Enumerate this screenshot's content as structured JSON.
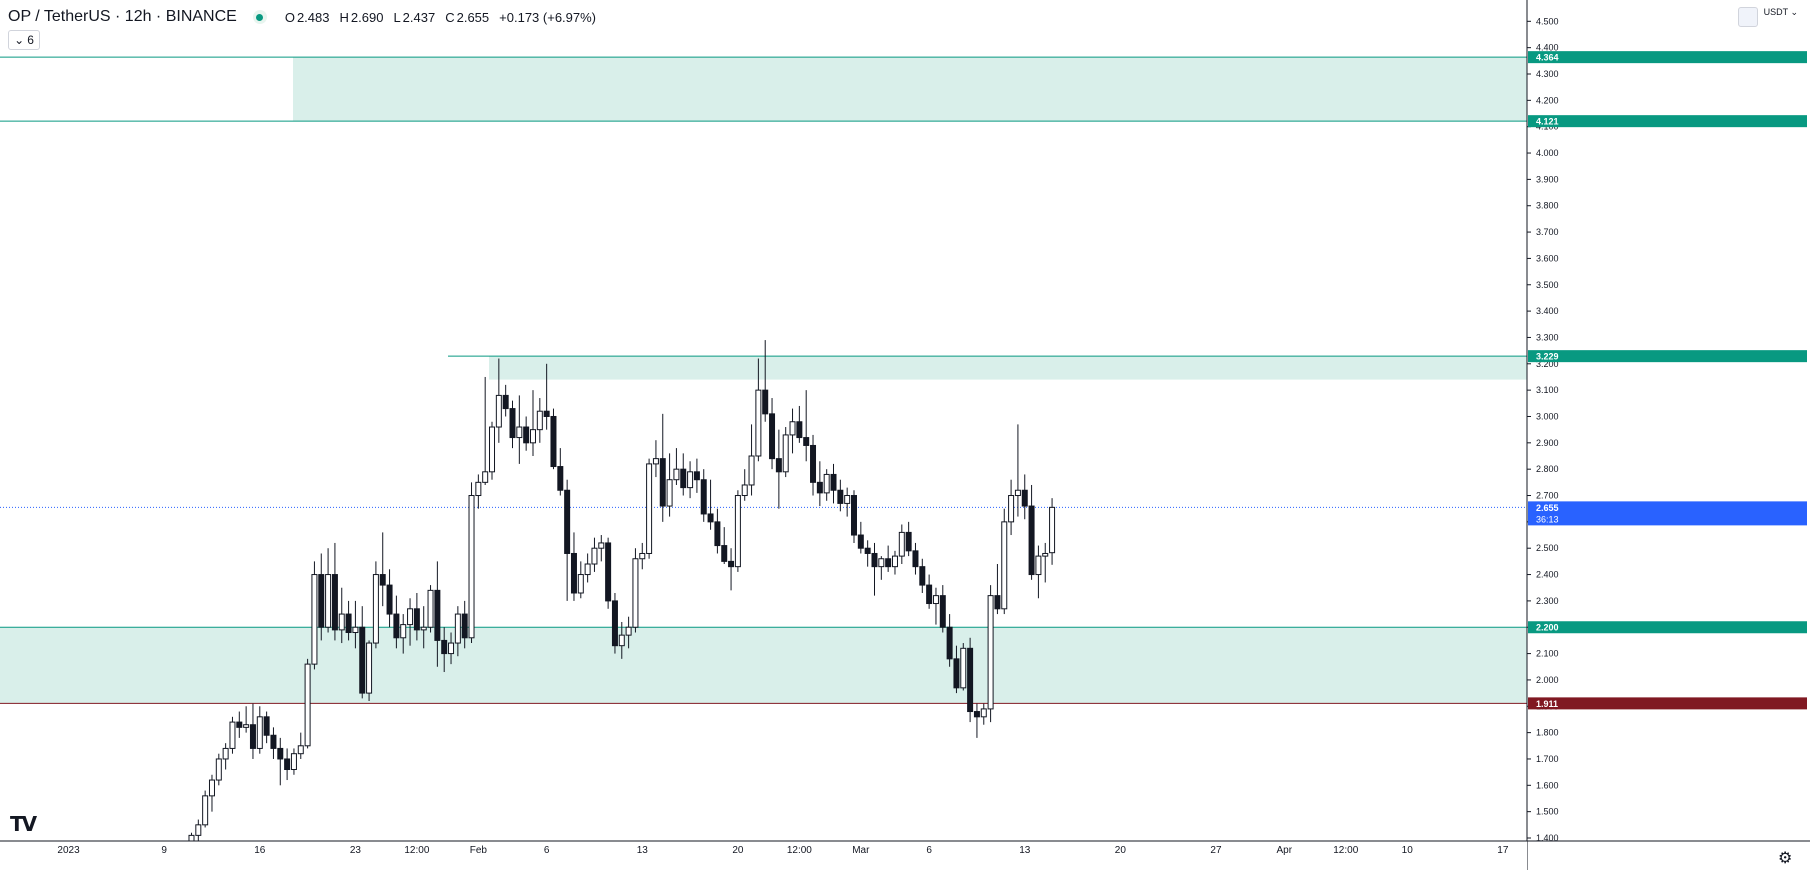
{
  "header": {
    "symbol": "OP / TetherUS · 12h · BINANCE",
    "open_label": "O",
    "open": "2.483",
    "high_label": "H",
    "high": "2.690",
    "low_label": "L",
    "low": "2.437",
    "close_label": "C",
    "close": "2.655",
    "change": "+0.173 (+6.97%)",
    "status_color": "#089981"
  },
  "indicator_toggle": {
    "icon": "chevron-down-icon",
    "count": "6"
  },
  "price_axis": {
    "currency": "USDT"
  },
  "logo_text": "TV",
  "colors": {
    "zone_fill": "#d9efea",
    "zone_line": "#089981",
    "support_red": "#801922",
    "current_price": "#2962ff",
    "grid": "#f0f3fa",
    "candle_body_down": "#131722"
  },
  "chart_data": {
    "type": "candlestick",
    "title": "OP / TetherUS · 12h · BINANCE",
    "ylim": [
      1.4,
      4.5
    ],
    "y_ticks": [
      1.4,
      1.5,
      1.6,
      1.7,
      1.8,
      1.9,
      2.0,
      2.1,
      2.2,
      2.3,
      2.4,
      2.5,
      2.6,
      2.7,
      2.8,
      2.9,
      3.0,
      3.1,
      3.2,
      3.3,
      3.4,
      3.5,
      3.6,
      3.7,
      3.8,
      3.9,
      4.0,
      4.1,
      4.2,
      4.3,
      4.4,
      4.5
    ],
    "x_labels": [
      {
        "label": "2023",
        "slot": -15
      },
      {
        "label": "9",
        "slot": -1
      },
      {
        "label": "16",
        "slot": 13
      },
      {
        "label": "23",
        "slot": 27
      },
      {
        "label": "12:00",
        "slot": 36
      },
      {
        "label": "Feb",
        "slot": 45
      },
      {
        "label": "6",
        "slot": 55
      },
      {
        "label": "13",
        "slot": 69
      },
      {
        "label": "20",
        "slot": 83
      },
      {
        "label": "12:00",
        "slot": 92
      },
      {
        "label": "Mar",
        "slot": 101
      },
      {
        "label": "6",
        "slot": 111
      },
      {
        "label": "13",
        "slot": 125
      },
      {
        "label": "20",
        "slot": 139
      },
      {
        "label": "27",
        "slot": 153
      },
      {
        "label": "Apr",
        "slot": 163
      },
      {
        "label": "12:00",
        "slot": 172
      },
      {
        "label": "10",
        "slot": 181
      },
      {
        "label": "17",
        "slot": 195
      }
    ],
    "zones": [
      {
        "top": 4.364,
        "bottom": 4.121,
        "label_top": "4.364",
        "label_bottom": "4.121"
      },
      {
        "top": 3.229,
        "bottom": 3.14,
        "label_top": "3.229"
      },
      {
        "top": 2.2,
        "bottom": 1.911,
        "label_top": "2.200",
        "label_bottom": "1.911"
      }
    ],
    "current_price": {
      "value": 2.655,
      "label": "2.655",
      "countdown": "36:13"
    },
    "candles": [
      [
        1.3,
        1.32,
        1.29,
        1.31
      ],
      [
        1.31,
        1.35,
        1.3,
        1.34
      ],
      [
        1.34,
        1.37,
        1.33,
        1.36
      ],
      [
        1.36,
        1.42,
        1.35,
        1.41
      ],
      [
        1.41,
        1.47,
        1.39,
        1.45
      ],
      [
        1.45,
        1.58,
        1.44,
        1.56
      ],
      [
        1.56,
        1.64,
        1.5,
        1.62
      ],
      [
        1.62,
        1.72,
        1.6,
        1.7
      ],
      [
        1.7,
        1.76,
        1.66,
        1.74
      ],
      [
        1.74,
        1.86,
        1.72,
        1.84
      ],
      [
        1.84,
        1.88,
        1.78,
        1.82
      ],
      [
        1.82,
        1.9,
        1.8,
        1.83
      ],
      [
        1.83,
        1.91,
        1.7,
        1.74
      ],
      [
        1.74,
        1.9,
        1.72,
        1.86
      ],
      [
        1.86,
        1.88,
        1.76,
        1.79
      ],
      [
        1.79,
        1.82,
        1.7,
        1.74
      ],
      [
        1.74,
        1.78,
        1.6,
        1.7
      ],
      [
        1.7,
        1.74,
        1.62,
        1.66
      ],
      [
        1.66,
        1.74,
        1.64,
        1.72
      ],
      [
        1.72,
        1.8,
        1.7,
        1.75
      ],
      [
        1.75,
        2.08,
        1.74,
        2.06
      ],
      [
        2.06,
        2.45,
        2.04,
        2.4
      ],
      [
        2.4,
        2.48,
        2.15,
        2.2
      ],
      [
        2.2,
        2.5,
        2.18,
        2.4
      ],
      [
        2.4,
        2.52,
        2.15,
        2.19
      ],
      [
        2.19,
        2.35,
        2.14,
        2.25
      ],
      [
        2.25,
        2.3,
        2.15,
        2.18
      ],
      [
        2.18,
        2.3,
        2.12,
        2.2
      ],
      [
        2.2,
        2.28,
        1.93,
        1.95
      ],
      [
        1.95,
        2.15,
        1.92,
        2.14
      ],
      [
        2.14,
        2.45,
        2.12,
        2.4
      ],
      [
        2.4,
        2.56,
        2.28,
        2.36
      ],
      [
        2.36,
        2.42,
        2.2,
        2.25
      ],
      [
        2.25,
        2.32,
        2.12,
        2.16
      ],
      [
        2.16,
        2.25,
        2.1,
        2.21
      ],
      [
        2.21,
        2.31,
        2.13,
        2.27
      ],
      [
        2.27,
        2.33,
        2.15,
        2.19
      ],
      [
        2.19,
        2.28,
        2.12,
        2.2
      ],
      [
        2.2,
        2.36,
        2.18,
        2.34
      ],
      [
        2.34,
        2.45,
        2.05,
        2.15
      ],
      [
        2.15,
        2.2,
        2.03,
        2.1
      ],
      [
        2.1,
        2.18,
        2.06,
        2.14
      ],
      [
        2.14,
        2.28,
        2.09,
        2.25
      ],
      [
        2.25,
        2.3,
        2.12,
        2.16
      ],
      [
        2.16,
        2.75,
        2.14,
        2.7
      ],
      [
        2.7,
        2.78,
        2.65,
        2.75
      ],
      [
        2.75,
        3.15,
        2.74,
        2.79
      ],
      [
        2.79,
        2.98,
        2.76,
        2.96
      ],
      [
        2.96,
        3.22,
        2.9,
        3.08
      ],
      [
        3.08,
        3.12,
        3.0,
        3.03
      ],
      [
        3.03,
        3.06,
        2.88,
        2.92
      ],
      [
        2.92,
        3.08,
        2.82,
        2.96
      ],
      [
        2.96,
        3.0,
        2.87,
        2.9
      ],
      [
        2.9,
        3.1,
        2.85,
        2.95
      ],
      [
        2.95,
        3.07,
        2.9,
        3.02
      ],
      [
        3.02,
        3.2,
        2.95,
        3.0
      ],
      [
        3.0,
        3.03,
        2.8,
        2.81
      ],
      [
        2.81,
        2.88,
        2.7,
        2.72
      ],
      [
        2.72,
        2.76,
        2.3,
        2.48
      ],
      [
        2.48,
        2.56,
        2.3,
        2.33
      ],
      [
        2.33,
        2.45,
        2.31,
        2.4
      ],
      [
        2.4,
        2.48,
        2.37,
        2.44
      ],
      [
        2.44,
        2.54,
        2.41,
        2.5
      ],
      [
        2.5,
        2.55,
        2.45,
        2.52
      ],
      [
        2.52,
        2.54,
        2.27,
        2.3
      ],
      [
        2.3,
        2.33,
        2.1,
        2.13
      ],
      [
        2.13,
        2.22,
        2.08,
        2.17
      ],
      [
        2.17,
        2.24,
        2.12,
        2.2
      ],
      [
        2.2,
        2.5,
        2.18,
        2.46
      ],
      [
        2.46,
        2.52,
        2.42,
        2.48
      ],
      [
        2.48,
        2.84,
        2.46,
        2.82
      ],
      [
        2.82,
        2.91,
        2.77,
        2.84
      ],
      [
        2.84,
        3.01,
        2.6,
        2.66
      ],
      [
        2.66,
        2.86,
        2.62,
        2.76
      ],
      [
        2.76,
        2.88,
        2.74,
        2.8
      ],
      [
        2.8,
        2.86,
        2.7,
        2.73
      ],
      [
        2.73,
        2.83,
        2.69,
        2.79
      ],
      [
        2.79,
        2.84,
        2.71,
        2.76
      ],
      [
        2.76,
        2.8,
        2.6,
        2.63
      ],
      [
        2.63,
        2.76,
        2.57,
        2.6
      ],
      [
        2.6,
        2.65,
        2.48,
        2.51
      ],
      [
        2.51,
        2.58,
        2.44,
        2.45
      ],
      [
        2.45,
        2.5,
        2.34,
        2.43
      ],
      [
        2.43,
        2.72,
        2.41,
        2.7
      ],
      [
        2.7,
        2.8,
        2.68,
        2.74
      ],
      [
        2.74,
        2.97,
        2.7,
        2.85
      ],
      [
        2.85,
        3.22,
        2.83,
        3.1
      ],
      [
        3.1,
        3.29,
        2.98,
        3.01
      ],
      [
        3.01,
        3.07,
        2.8,
        2.84
      ],
      [
        2.84,
        2.95,
        2.65,
        2.79
      ],
      [
        2.79,
        2.96,
        2.77,
        2.93
      ],
      [
        2.93,
        3.03,
        2.86,
        2.98
      ],
      [
        2.98,
        3.04,
        2.9,
        2.92
      ],
      [
        2.92,
        3.1,
        2.83,
        2.89
      ],
      [
        2.89,
        2.93,
        2.7,
        2.75
      ],
      [
        2.75,
        2.83,
        2.66,
        2.71
      ],
      [
        2.71,
        2.8,
        2.68,
        2.78
      ],
      [
        2.78,
        2.82,
        2.67,
        2.72
      ],
      [
        2.72,
        2.76,
        2.64,
        2.67
      ],
      [
        2.67,
        2.73,
        2.62,
        2.7
      ],
      [
        2.7,
        2.72,
        2.52,
        2.55
      ],
      [
        2.55,
        2.6,
        2.48,
        2.5
      ],
      [
        2.5,
        2.53,
        2.43,
        2.48
      ],
      [
        2.48,
        2.52,
        2.32,
        2.43
      ],
      [
        2.43,
        2.47,
        2.38,
        2.46
      ],
      [
        2.46,
        2.51,
        2.41,
        2.43
      ],
      [
        2.43,
        2.49,
        2.4,
        2.47
      ],
      [
        2.47,
        2.59,
        2.44,
        2.56
      ],
      [
        2.56,
        2.6,
        2.47,
        2.49
      ],
      [
        2.49,
        2.52,
        2.4,
        2.43
      ],
      [
        2.43,
        2.46,
        2.33,
        2.36
      ],
      [
        2.36,
        2.4,
        2.27,
        2.29
      ],
      [
        2.29,
        2.35,
        2.21,
        2.32
      ],
      [
        2.32,
        2.36,
        2.18,
        2.2
      ],
      [
        2.2,
        2.25,
        2.05,
        2.08
      ],
      [
        2.08,
        2.13,
        1.95,
        1.97
      ],
      [
        1.97,
        2.14,
        1.96,
        2.12
      ],
      [
        2.12,
        2.16,
        1.84,
        1.88
      ],
      [
        1.88,
        1.91,
        1.78,
        1.86
      ],
      [
        1.86,
        1.91,
        1.83,
        1.89
      ],
      [
        1.89,
        2.36,
        1.84,
        2.32
      ],
      [
        2.32,
        2.44,
        2.25,
        2.27
      ],
      [
        2.27,
        2.65,
        2.25,
        2.6
      ],
      [
        2.6,
        2.76,
        2.55,
        2.7
      ],
      [
        2.7,
        2.97,
        2.62,
        2.72
      ],
      [
        2.72,
        2.78,
        2.61,
        2.66
      ],
      [
        2.66,
        2.74,
        2.38,
        2.4
      ],
      [
        2.4,
        2.51,
        2.31,
        2.47
      ],
      [
        2.47,
        2.52,
        2.37,
        2.48
      ],
      [
        2.483,
        2.69,
        2.437,
        2.655
      ]
    ]
  }
}
